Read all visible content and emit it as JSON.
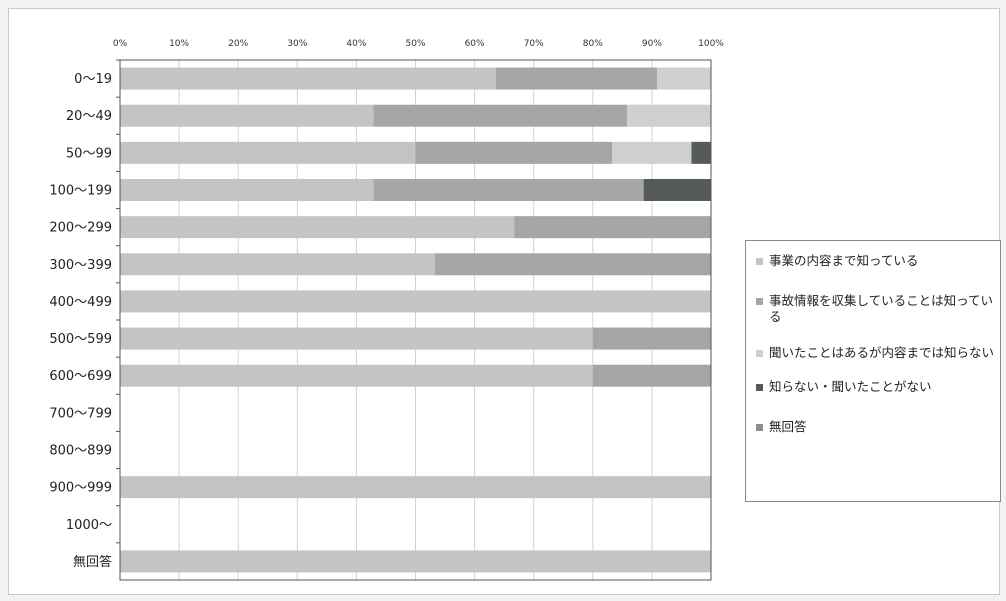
{
  "chart_data": {
    "type": "bar",
    "orientation": "horizontal",
    "stacked": "percent",
    "xlim": [
      0,
      100
    ],
    "x_ticks": [
      "0%",
      "10%",
      "20%",
      "30%",
      "40%",
      "50%",
      "60%",
      "70%",
      "80%",
      "90%",
      "100%"
    ],
    "grid": true,
    "legend_position": "right",
    "categories": [
      "0～19",
      "20～49",
      "50～99",
      "100～199",
      "200～299",
      "300～399",
      "400～499",
      "500～599",
      "600～699",
      "700～799",
      "800～899",
      "900～999",
      "1000～",
      "無回答"
    ],
    "series": [
      {
        "name": "事業の内容まで知っている",
        "color": "#c4c4c4",
        "values": [
          63.6,
          42.9,
          50.0,
          42.9,
          66.7,
          53.3,
          100,
          80.0,
          80.0,
          0,
          0,
          100,
          0,
          100
        ]
      },
      {
        "name": "事故情報を収集していることは知っている",
        "color": "#a6a6a6",
        "values": [
          27.3,
          42.9,
          33.3,
          45.7,
          33.3,
          46.7,
          0,
          20.0,
          20.0,
          0,
          0,
          0,
          0,
          0
        ]
      },
      {
        "name": "聞いたことはあるが内容までは知らない",
        "color": "#cfcfcf",
        "values": [
          9.1,
          14.2,
          13.4,
          0,
          0,
          0,
          0,
          0,
          0,
          0,
          0,
          0,
          0,
          0
        ]
      },
      {
        "name": "知らない・聞いたことがない",
        "color": "#555b58",
        "values": [
          0,
          0,
          3.3,
          11.4,
          0,
          0,
          0,
          0,
          0,
          0,
          0,
          0,
          0,
          0
        ]
      },
      {
        "name": "無回答",
        "color": "#8e8e8e",
        "values": [
          0,
          0,
          0,
          0,
          0,
          0,
          0,
          0,
          0,
          0,
          0,
          0,
          0,
          0
        ]
      }
    ]
  }
}
